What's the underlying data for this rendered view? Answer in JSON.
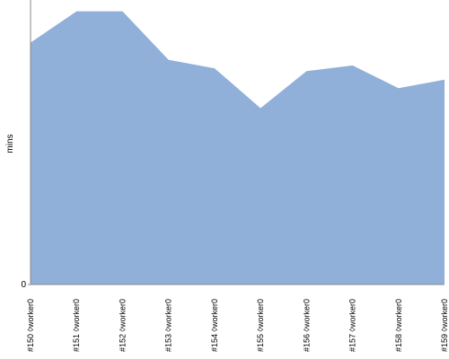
{
  "chart_data": {
    "type": "area",
    "y_label": "mins",
    "categories": [
      "#150 ◊worker0",
      "#151 ◊worker0",
      "#152 ◊worker0",
      "#153 ◊worker0",
      "#154 ◊worker0",
      "#155 ◊worker0",
      "#156 ◊worker0",
      "#157 ◊worker0",
      "#158 ◊worker0",
      "#159 ◊worker0"
    ],
    "values": [
      8.5,
      9.6,
      9.6,
      7.9,
      7.6,
      6.2,
      7.5,
      7.7,
      6.9,
      7.2
    ],
    "color": "#90b0da",
    "ylim": [
      0,
      10
    ],
    "yticks": [
      0
    ]
  }
}
